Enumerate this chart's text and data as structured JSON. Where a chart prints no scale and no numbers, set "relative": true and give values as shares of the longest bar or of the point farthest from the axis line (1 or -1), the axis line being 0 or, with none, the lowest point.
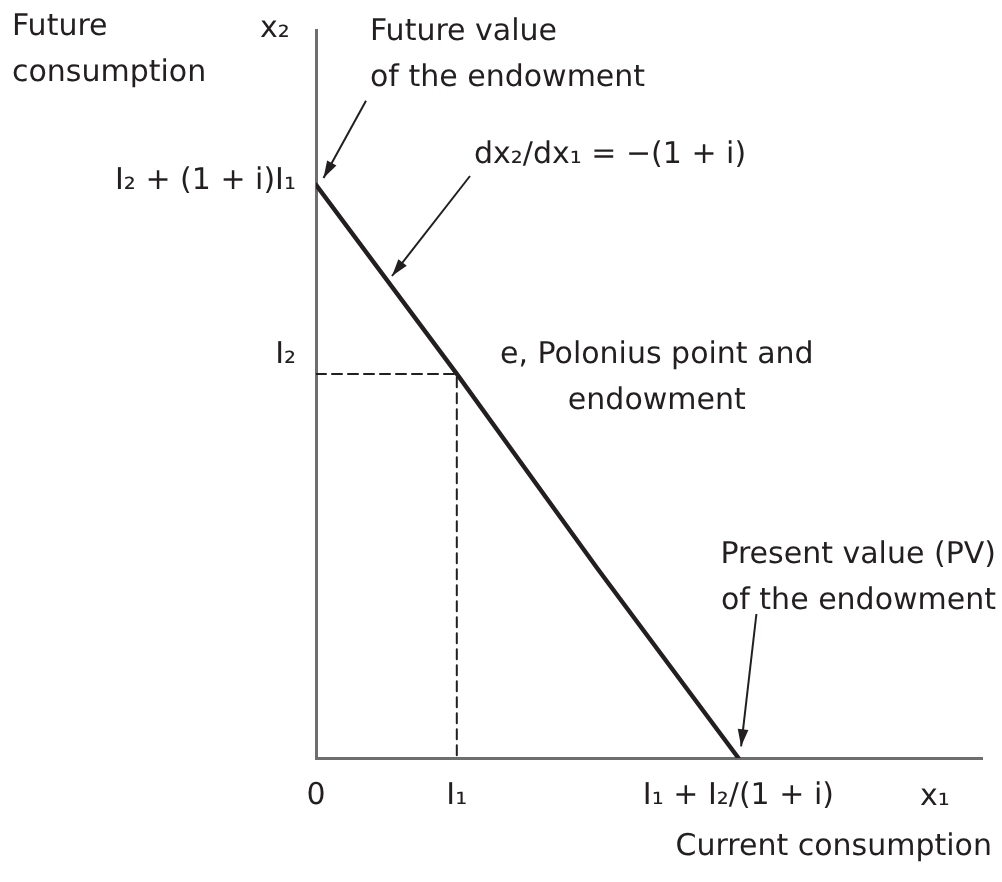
{
  "chart_data": {
    "type": "line",
    "relative": true,
    "xlabel": "Current consumption",
    "ylabel": "Future consumption",
    "categories": [
      "0",
      "I₁",
      null,
      "I₁ + I₂/(1 + i)",
      null
    ],
    "series": [
      {
        "type": "line",
        "color": "#231f20",
        "values": [
          1,
          0.67,
          0.33,
          0,
          null
        ]
      },
      {
        "type": "line",
        "color": "#231f20",
        "line_style": "dashed",
        "x": [
          "0",
          "I₁",
          "I₁"
        ],
        "values": [
          0.67,
          0.67,
          0
        ]
      }
    ],
    "annotations": [
      {
        "text": "Future value\nof the endowment",
        "x": "0",
        "y": 1
      },
      "dx₂/dx₁ = −(1 + i)",
      {
        "text": "e, Polonius point and\nendowment",
        "x": "I₁",
        "y": 0.67
      },
      {
        "text": "Present value (PV)\nof the endowment",
        "x": "I₁ + I₂/(1 + i)",
        "y": 0
      },
      "I₂",
      "I₂ + (1 + i)I₁",
      "x₁",
      "x₂"
    ],
    "marker": "none",
    "grid": false,
    "legend": false
  }
}
